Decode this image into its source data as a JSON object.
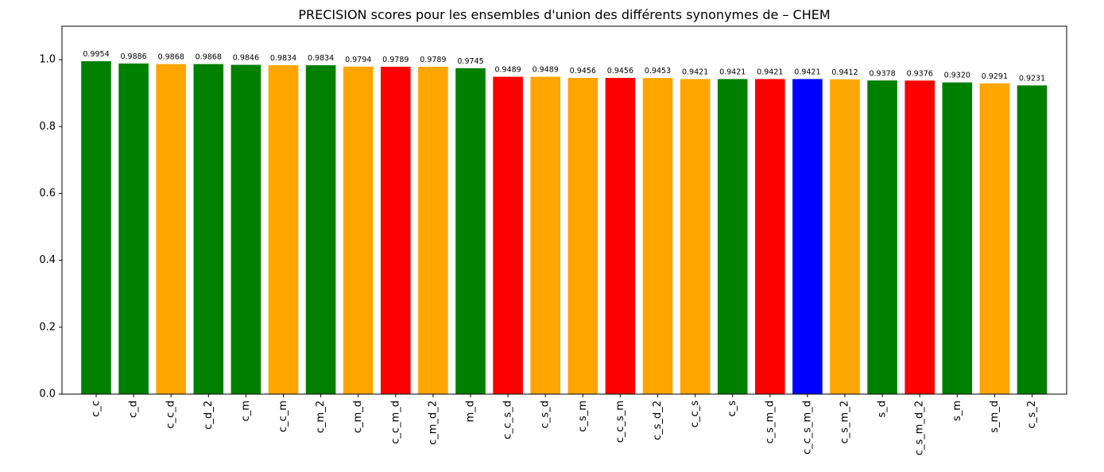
{
  "chart_data": {
    "type": "bar",
    "title": "PRECISION scores pour les ensembles d'union des différents synonymes de – CHEM",
    "xlabel": "",
    "ylabel": "",
    "ylim": [
      0,
      1.1
    ],
    "yticks": [
      "0.0",
      "0.2",
      "0.4",
      "0.6",
      "0.8",
      "1.0"
    ],
    "ytick_values": [
      0.0,
      0.2,
      0.4,
      0.6,
      0.8,
      1.0
    ],
    "grid": false,
    "legend": "none",
    "colors": {
      "green": "#008000",
      "orange": "#ffa500",
      "red": "#ff0000",
      "blue": "#0000ff"
    },
    "categories": [
      "c_c",
      "c_d",
      "c_c_d",
      "c_d_2",
      "c_m",
      "c_c_m",
      "c_m_2",
      "c_m_d",
      "c_c_m_d",
      "c_m_d_2",
      "m_d",
      "c_c_s_d",
      "c_s_d",
      "c_s_m",
      "c_c_s_m",
      "c_s_d_2",
      "c_c_s",
      "c_s",
      "c_s_m_d",
      "c_c_s_m_d",
      "c_s_m_2",
      "s_d",
      "c_s_m_d_2",
      "s_m",
      "s_m_d",
      "c_s_2"
    ],
    "values": [
      0.9954,
      0.9886,
      0.9868,
      0.9868,
      0.9846,
      0.9834,
      0.9834,
      0.9794,
      0.9789,
      0.9789,
      0.9745,
      0.9489,
      0.9489,
      0.9456,
      0.9456,
      0.9453,
      0.9421,
      0.9421,
      0.9421,
      0.9421,
      0.9412,
      0.9378,
      0.9376,
      0.932,
      0.9291,
      0.9231
    ],
    "labels": [
      "0.9954",
      "0.9886",
      "0.9868",
      "0.9868",
      "0.9846",
      "0.9834",
      "0.9834",
      "0.9794",
      "0.9789",
      "0.9789",
      "0.9745",
      "0.9489",
      "0.9489",
      "0.9456",
      "0.9456",
      "0.9453",
      "0.9421",
      "0.9421",
      "0.9421",
      "0.9421",
      "0.9412",
      "0.9378",
      "0.9376",
      "0.9320",
      "0.9291",
      "0.9231"
    ],
    "bar_colors": [
      "green",
      "green",
      "orange",
      "green",
      "green",
      "orange",
      "green",
      "orange",
      "red",
      "orange",
      "green",
      "red",
      "orange",
      "orange",
      "red",
      "orange",
      "orange",
      "green",
      "red",
      "blue",
      "orange",
      "green",
      "red",
      "green",
      "orange",
      "green"
    ]
  }
}
